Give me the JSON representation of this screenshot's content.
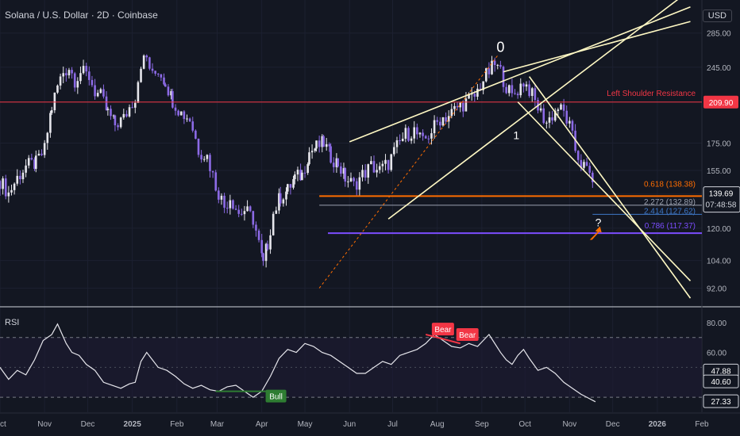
{
  "header": {
    "symbol": "Solana / U.S. Dollar · 2D · Coinbase",
    "currency": "USD"
  },
  "chart_data": [
    {
      "type": "candlestick",
      "title": "Solana / U.S. Dollar · 2D · Coinbase",
      "y_scale": "log",
      "ylim": [
        85,
        330
      ],
      "y_ticks": [
        285,
        245,
        209.9,
        175,
        155,
        139.69,
        120,
        104,
        92
      ],
      "y_tick_labels": [
        "285.00",
        "245.00",
        "209.90",
        "175.00",
        "155.00",
        "139.69",
        "120.00",
        "104.00",
        "92.00"
      ],
      "x_ticks": [
        "Oct",
        "Nov",
        "Dec",
        "2025",
        "Feb",
        "Mar",
        "Apr",
        "May",
        "Jun",
        "Jul",
        "Aug",
        "Sep",
        "Oct",
        "Nov",
        "Dec",
        "2026",
        "Feb"
      ],
      "x_tick_days": [
        0,
        31,
        61,
        92,
        123,
        151,
        182,
        212,
        243,
        273,
        304,
        335,
        365,
        396,
        426,
        457,
        488
      ],
      "xlim_days": [
        0,
        488
      ],
      "closes_dotted_sample": [
        [
          0,
          148
        ],
        [
          6,
          140
        ],
        [
          12,
          150
        ],
        [
          18,
          158
        ],
        [
          25,
          160
        ],
        [
          31,
          170
        ],
        [
          36,
          205
        ],
        [
          40,
          225
        ],
        [
          44,
          240
        ],
        [
          48,
          245
        ],
        [
          52,
          232
        ],
        [
          56,
          240
        ],
        [
          62,
          235
        ],
        [
          66,
          220
        ],
        [
          70,
          215
        ],
        [
          75,
          200
        ],
        [
          80,
          190
        ],
        [
          86,
          195
        ],
        [
          90,
          205
        ],
        [
          94,
          215
        ],
        [
          98,
          250
        ],
        [
          102,
          255
        ],
        [
          106,
          235
        ],
        [
          110,
          242
        ],
        [
          115,
          230
        ],
        [
          120,
          212
        ],
        [
          126,
          200
        ],
        [
          132,
          195
        ],
        [
          138,
          170
        ],
        [
          144,
          165
        ],
        [
          150,
          145
        ],
        [
          156,
          132
        ],
        [
          160,
          138
        ],
        [
          166,
          128
        ],
        [
          170,
          130
        ],
        [
          176,
          125
        ],
        [
          180,
          112
        ],
        [
          183,
          102
        ],
        [
          186,
          112
        ],
        [
          190,
          128
        ],
        [
          195,
          138
        ],
        [
          200,
          142
        ],
        [
          205,
          150
        ],
        [
          210,
          152
        ],
        [
          215,
          168
        ],
        [
          220,
          172
        ],
        [
          225,
          175
        ],
        [
          230,
          165
        ],
        [
          235,
          160
        ],
        [
          240,
          150
        ],
        [
          246,
          145
        ],
        [
          252,
          152
        ],
        [
          258,
          158
        ],
        [
          264,
          155
        ],
        [
          270,
          160
        ],
        [
          276,
          172
        ],
        [
          282,
          182
        ],
        [
          288,
          185
        ],
        [
          294,
          175
        ],
        [
          300,
          185
        ],
        [
          306,
          195
        ],
        [
          312,
          198
        ],
        [
          318,
          205
        ],
        [
          324,
          210
        ],
        [
          330,
          215
        ],
        [
          336,
          232
        ],
        [
          340,
          240
        ],
        [
          344,
          248
        ],
        [
          348,
          240
        ],
        [
          352,
          225
        ],
        [
          356,
          215
        ],
        [
          360,
          222
        ],
        [
          364,
          230
        ],
        [
          368,
          222
        ],
        [
          372,
          210
        ],
        [
          376,
          200
        ],
        [
          380,
          192
        ],
        [
          384,
          198
        ],
        [
          388,
          205
        ],
        [
          392,
          200
        ],
        [
          396,
          188
        ],
        [
          400,
          170
        ],
        [
          404,
          160
        ],
        [
          408,
          155
        ],
        [
          412,
          150
        ],
        [
          414,
          140
        ]
      ],
      "annotations": {
        "label_0": "0",
        "label_1": "1",
        "question": "?",
        "left_shoulder": "Left Shoulder Resistance",
        "left_shoulder_price": 209.9,
        "fib_0618": "0.618 (138.38)",
        "fib_0618_price": 138.38,
        "fib_2272": "2.272 (132.89)",
        "fib_2272_price": 132.89,
        "fib_2414": "2.414 (127.62)",
        "fib_2414_price": 127.62,
        "fib_0786": "0.786 (117.37)",
        "fib_0786_price": 117.37,
        "countdown": "07:48:58",
        "last_price": "139.69",
        "resistance_price_label": "209.90"
      },
      "trendlines": [
        {
          "from": [
            243,
            176
          ],
          "to": [
            300,
            199
          ],
          "to_far": [
            480,
            320
          ],
          "color": "#fff9c4"
        },
        {
          "from": [
            270,
            125
          ],
          "to": [
            372,
            240
          ],
          "to_far": [
            480,
            345
          ],
          "color": "#fff9c4"
        },
        {
          "from": [
            350,
            240
          ],
          "to": [
            480,
            300
          ],
          "color": "#fff9c4"
        },
        {
          "from": [
            368,
            235
          ],
          "to": [
            480,
            88
          ],
          "color": "#fff9c4"
        },
        {
          "from": [
            360,
            210
          ],
          "to": [
            480,
            95
          ],
          "color": "#fff9c4"
        }
      ]
    },
    {
      "type": "line",
      "title": "RSI",
      "ylim": [
        20,
        90
      ],
      "y_ticks": [
        80,
        60,
        47.88,
        40.6,
        27.33
      ],
      "y_tick_labels": [
        "80.00",
        "60.00",
        "47.88",
        "40.60",
        "27.33"
      ],
      "bands": [
        70,
        30
      ],
      "x_days": [
        0,
        6,
        12,
        18,
        24,
        30,
        36,
        40,
        46,
        50,
        55,
        60,
        66,
        72,
        78,
        84,
        90,
        94,
        98,
        102,
        106,
        110,
        116,
        122,
        128,
        134,
        140,
        146,
        152,
        158,
        164,
        170,
        176,
        182,
        188,
        194,
        200,
        206,
        212,
        218,
        224,
        230,
        236,
        242,
        248,
        254,
        260,
        266,
        272,
        278,
        284,
        290,
        296,
        302,
        308,
        314,
        320,
        326,
        332,
        336,
        340,
        344,
        348,
        352,
        356,
        360,
        364,
        368,
        374,
        380,
        386,
        392,
        398,
        404,
        408,
        412,
        414
      ],
      "values": [
        50,
        42,
        48,
        45,
        55,
        68,
        72,
        79,
        66,
        60,
        58,
        52,
        48,
        40,
        38,
        36,
        39,
        40,
        54,
        60,
        55,
        50,
        48,
        44,
        39,
        36,
        38,
        35,
        34,
        37,
        38,
        34,
        30,
        34,
        44,
        56,
        62,
        60,
        66,
        64,
        60,
        58,
        54,
        50,
        46,
        46,
        50,
        54,
        52,
        58,
        60,
        62,
        66,
        72,
        68,
        64,
        63,
        66,
        64,
        68,
        72,
        66,
        60,
        55,
        52,
        58,
        62,
        56,
        48,
        50,
        46,
        40,
        36,
        32,
        30,
        28,
        27
      ],
      "annotations": {
        "bull": "Bull",
        "bear1": "Bear",
        "bear2": "Bear",
        "label": "RSI"
      }
    }
  ]
}
